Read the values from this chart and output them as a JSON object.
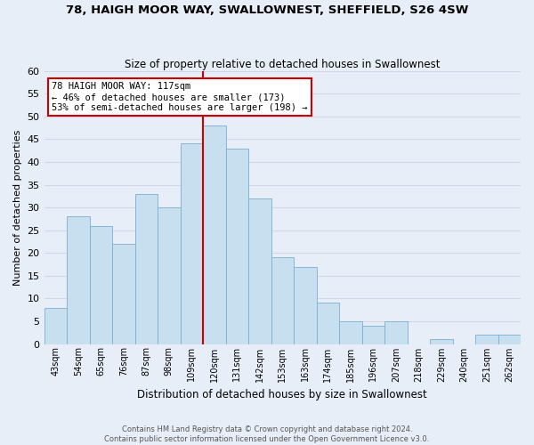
{
  "title": "78, HAIGH MOOR WAY, SWALLOWNEST, SHEFFIELD, S26 4SW",
  "subtitle": "Size of property relative to detached houses in Swallownest",
  "xlabel": "Distribution of detached houses by size in Swallownest",
  "ylabel": "Number of detached properties",
  "bar_labels": [
    "43sqm",
    "54sqm",
    "65sqm",
    "76sqm",
    "87sqm",
    "98sqm",
    "109sqm",
    "120sqm",
    "131sqm",
    "142sqm",
    "153sqm",
    "163sqm",
    "174sqm",
    "185sqm",
    "196sqm",
    "207sqm",
    "218sqm",
    "229sqm",
    "240sqm",
    "251sqm",
    "262sqm"
  ],
  "bar_values": [
    8,
    28,
    26,
    22,
    33,
    30,
    44,
    48,
    43,
    32,
    19,
    17,
    9,
    5,
    4,
    5,
    0,
    1,
    0,
    2,
    2
  ],
  "bar_color": "#c8dff0",
  "bar_edge_color": "#7bafd4",
  "vline_x_index": 7,
  "vline_color": "#cc0000",
  "annotation_title": "78 HAIGH MOOR WAY: 117sqm",
  "annotation_line1": "← 46% of detached houses are smaller (173)",
  "annotation_line2": "53% of semi-detached houses are larger (198) →",
  "annotation_box_color": "#ffffff",
  "annotation_box_edge": "#cc0000",
  "ylim": [
    0,
    60
  ],
  "yticks": [
    0,
    5,
    10,
    15,
    20,
    25,
    30,
    35,
    40,
    45,
    50,
    55,
    60
  ],
  "grid_color": "#d0d8e8",
  "background_color": "#e8eef8",
  "footer_line1": "Contains HM Land Registry data © Crown copyright and database right 2024.",
  "footer_line2": "Contains public sector information licensed under the Open Government Licence v3.0."
}
